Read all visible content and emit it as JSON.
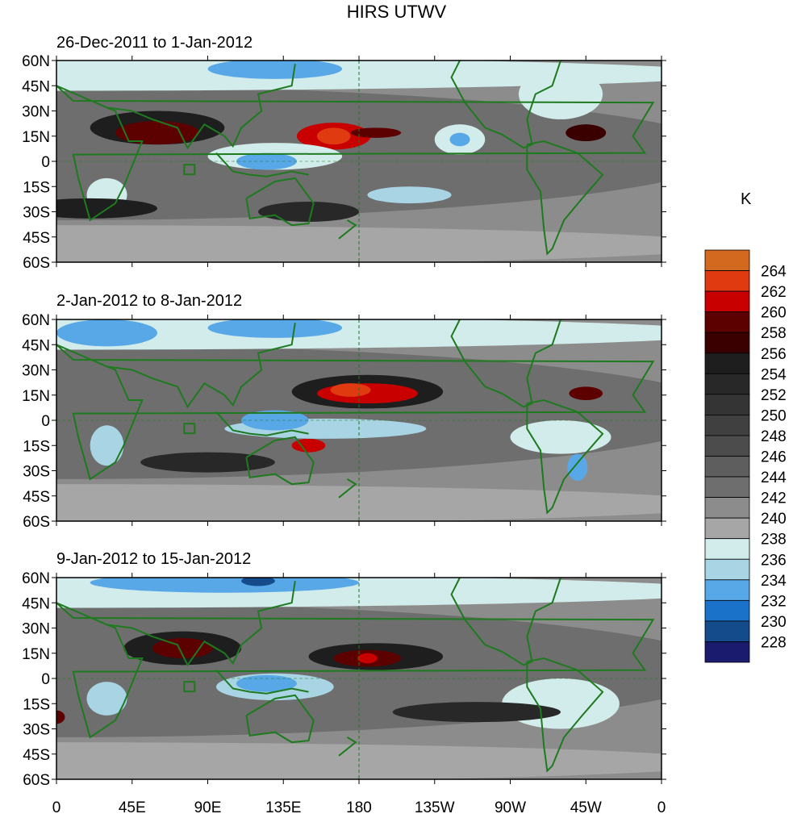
{
  "title": "HIRS UTWV",
  "unit": "K",
  "panels": [
    {
      "title": "26-Dec-2011 to 1-Jan-2012"
    },
    {
      "title": "2-Jan-2012 to 8-Jan-2012"
    },
    {
      "title": "9-Jan-2012 to 15-Jan-2012"
    }
  ],
  "chart_data": {
    "type": "heatmap",
    "title": "HIRS UTWV",
    "colorbar_label": "K",
    "lat_ticks": [
      "60N",
      "45N",
      "30N",
      "15N",
      "0",
      "15S",
      "30S",
      "45S",
      "60S"
    ],
    "lon_ticks": [
      "0",
      "45E",
      "90E",
      "135E",
      "180",
      "135W",
      "90W",
      "45W",
      "0"
    ],
    "levels": [
      "228",
      "230",
      "232",
      "234",
      "236",
      "238",
      "240",
      "242",
      "244",
      "246",
      "248",
      "250",
      "252",
      "254",
      "256",
      "258",
      "260",
      "262",
      "264"
    ],
    "colors": [
      "#1a1a6e",
      "#144b8a",
      "#1a73c9",
      "#58a8e8",
      "#a8d4e4",
      "#d2ecec",
      "#a6a6a6",
      "#8c8c8c",
      "#6e6e6e",
      "#5e5e5e",
      "#4c4c4c",
      "#404040",
      "#343434",
      "#282828",
      "#1e1e1e",
      "#3a0000",
      "#5c0000",
      "#c80000",
      "#e03a10",
      "#d2691e"
    ]
  }
}
